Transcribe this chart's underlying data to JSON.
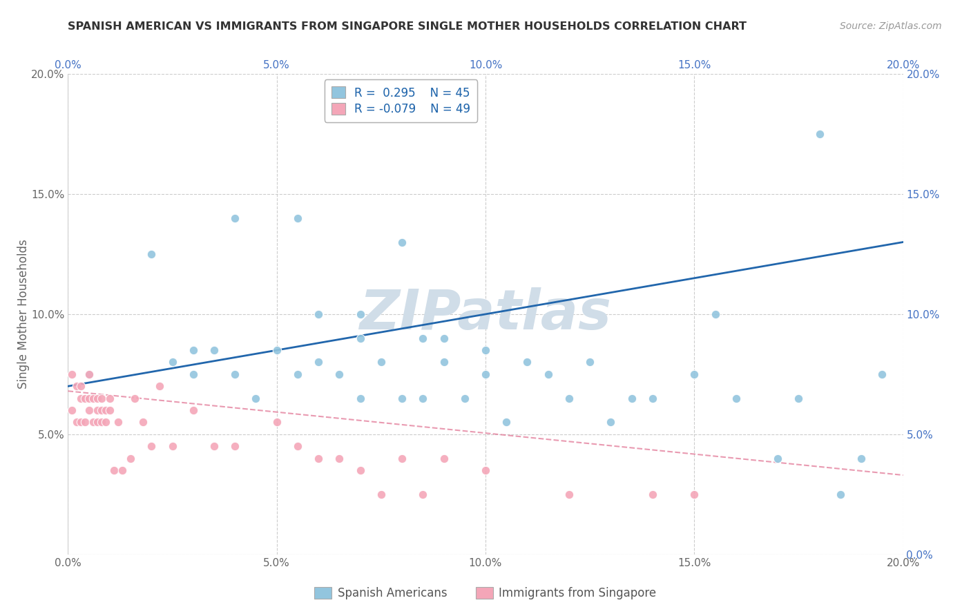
{
  "title": "SPANISH AMERICAN VS IMMIGRANTS FROM SINGAPORE SINGLE MOTHER HOUSEHOLDS CORRELATION CHART",
  "source": "Source: ZipAtlas.com",
  "ylabel": "Single Mother Households",
  "xlim": [
    0.0,
    0.2
  ],
  "ylim": [
    0.0,
    0.2
  ],
  "ticks": [
    0.0,
    0.05,
    0.1,
    0.15,
    0.2
  ],
  "color_blue": "#92c5de",
  "color_pink": "#f4a6b8",
  "color_blue_line": "#2166ac",
  "color_pink_line": "#e07090",
  "watermark": "ZIPatlas",
  "blue_scatter_x": [
    0.005,
    0.02,
    0.025,
    0.03,
    0.03,
    0.035,
    0.04,
    0.04,
    0.045,
    0.05,
    0.055,
    0.055,
    0.06,
    0.065,
    0.07,
    0.07,
    0.075,
    0.08,
    0.085,
    0.09,
    0.095,
    0.1,
    0.1,
    0.105,
    0.11,
    0.115,
    0.12,
    0.125,
    0.13,
    0.135,
    0.14,
    0.15,
    0.155,
    0.16,
    0.17,
    0.175,
    0.18,
    0.185,
    0.19,
    0.195,
    0.085,
    0.09,
    0.06,
    0.07,
    0.08
  ],
  "blue_scatter_y": [
    0.075,
    0.125,
    0.08,
    0.075,
    0.085,
    0.085,
    0.075,
    0.14,
    0.065,
    0.085,
    0.075,
    0.14,
    0.08,
    0.075,
    0.065,
    0.09,
    0.08,
    0.065,
    0.065,
    0.08,
    0.065,
    0.085,
    0.075,
    0.055,
    0.08,
    0.075,
    0.065,
    0.08,
    0.055,
    0.065,
    0.065,
    0.075,
    0.1,
    0.065,
    0.04,
    0.065,
    0.175,
    0.025,
    0.04,
    0.075,
    0.09,
    0.09,
    0.1,
    0.1,
    0.13
  ],
  "pink_scatter_x": [
    0.001,
    0.001,
    0.002,
    0.002,
    0.003,
    0.003,
    0.003,
    0.004,
    0.004,
    0.005,
    0.005,
    0.005,
    0.006,
    0.006,
    0.007,
    0.007,
    0.007,
    0.008,
    0.008,
    0.008,
    0.009,
    0.009,
    0.01,
    0.01,
    0.011,
    0.012,
    0.013,
    0.015,
    0.016,
    0.018,
    0.02,
    0.022,
    0.025,
    0.03,
    0.035,
    0.04,
    0.05,
    0.055,
    0.06,
    0.065,
    0.07,
    0.075,
    0.08,
    0.085,
    0.09,
    0.1,
    0.12,
    0.14,
    0.15
  ],
  "pink_scatter_y": [
    0.075,
    0.06,
    0.07,
    0.055,
    0.065,
    0.055,
    0.07,
    0.065,
    0.055,
    0.065,
    0.06,
    0.075,
    0.055,
    0.065,
    0.055,
    0.065,
    0.06,
    0.06,
    0.055,
    0.065,
    0.06,
    0.055,
    0.065,
    0.06,
    0.035,
    0.055,
    0.035,
    0.04,
    0.065,
    0.055,
    0.045,
    0.07,
    0.045,
    0.06,
    0.045,
    0.045,
    0.055,
    0.045,
    0.04,
    0.04,
    0.035,
    0.025,
    0.04,
    0.025,
    0.04,
    0.035,
    0.025,
    0.025,
    0.025
  ],
  "blue_line_x": [
    0.0,
    0.2
  ],
  "blue_line_y": [
    0.07,
    0.13
  ],
  "pink_line_x": [
    0.0,
    0.2
  ],
  "pink_line_y": [
    0.068,
    0.033
  ]
}
